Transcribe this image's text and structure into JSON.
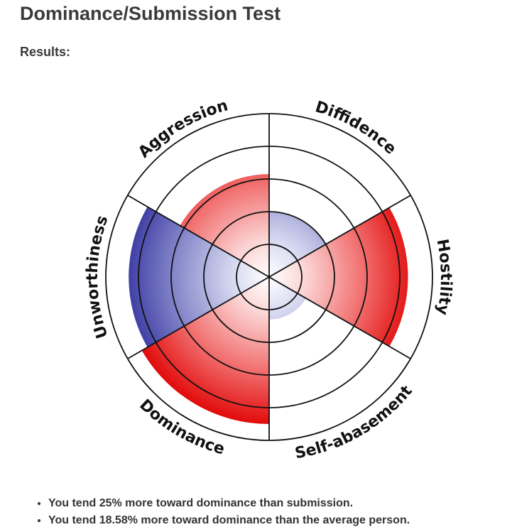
{
  "page": {
    "title": "Dominance/Submission Test",
    "results_label": "Results:"
  },
  "chart_data": {
    "type": "polar-area",
    "ring_count": 5,
    "max_value": 5,
    "sectors": [
      {
        "label": "Diffidence",
        "value": 2.0,
        "color": "#2e2e9c"
      },
      {
        "label": "Hostility",
        "value": 4.25,
        "color": "#e00000"
      },
      {
        "label": "Self-abasement",
        "value": 1.3,
        "color": "#2e2e9c"
      },
      {
        "label": "Dominance",
        "value": 4.5,
        "color": "#e00000"
      },
      {
        "label": "Unworthiness",
        "value": 4.3,
        "color": "#2e2e9c"
      },
      {
        "label": "Aggression",
        "value": 3.15,
        "color": "#e00000"
      }
    ]
  },
  "results": [
    "You tend 25% more toward dominance than submission.",
    "You tend 18.58% more toward dominance than the average person."
  ]
}
